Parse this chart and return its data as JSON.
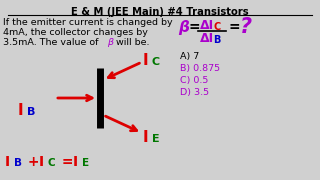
{
  "title": "E & M (JEE Main) #4 Transistors",
  "bg_color": "#d0d0d0",
  "text_color_black": "#000000",
  "text_color_red": "#dd0000",
  "text_color_purple": "#aa00cc",
  "text_color_blue": "#0000cc",
  "text_color_green": "#007700",
  "problem_line1": "If the emitter current is changed by",
  "problem_line2": "4mA, the collector changes by",
  "problem_line3": "3.5mA. The value of ",
  "beta_char": "β",
  "will_be": " will be.",
  "answer_A": "A) 7",
  "answer_B": "B) 0.875",
  "answer_C": "C) 0.5",
  "answer_D": "D) 3.5",
  "figsize": [
    3.2,
    1.8
  ],
  "dpi": 100
}
